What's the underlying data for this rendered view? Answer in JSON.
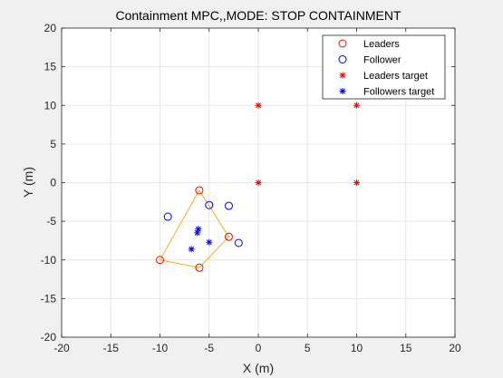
{
  "chart_data": {
    "type": "scatter",
    "title": "Containment MPC,,MODE: STOP CONTAINMENT",
    "xlabel": "X (m)",
    "ylabel": "Y (m)",
    "xlim": [
      -20,
      20
    ],
    "ylim": [
      -20,
      20
    ],
    "xticks": [
      -20,
      -15,
      -10,
      -5,
      0,
      5,
      10,
      15,
      20
    ],
    "yticks": [
      -20,
      -15,
      -10,
      -5,
      0,
      5,
      10,
      15,
      20
    ],
    "grid": true,
    "legend_position": "top-right",
    "series": [
      {
        "name": "Leaders",
        "marker": "circle",
        "color": "#ff0000",
        "points": [
          [
            -6,
            -1
          ],
          [
            -3,
            -7
          ],
          [
            -6,
            -11
          ],
          [
            -10,
            -10
          ]
        ]
      },
      {
        "name": "Follower",
        "marker": "circle",
        "color": "#0000ff",
        "points": [
          [
            -9.2,
            -4.4
          ],
          [
            -5,
            -2.9
          ],
          [
            -3,
            -3
          ],
          [
            -2,
            -7.8
          ]
        ]
      },
      {
        "name": "Leaders target",
        "marker": "asterisk",
        "color": "#ff0000",
        "points": [
          [
            0,
            10
          ],
          [
            10,
            10
          ],
          [
            0,
            0
          ],
          [
            10,
            0
          ]
        ]
      },
      {
        "name": "Followers target",
        "marker": "asterisk",
        "color": "#0000ff",
        "points": [
          [
            -6.1,
            -6
          ],
          [
            -6.2,
            -6.5
          ],
          [
            -5,
            -7.7
          ],
          [
            -6.8,
            -8.6
          ]
        ]
      }
    ],
    "hull": {
      "color": "#edb120",
      "points": [
        [
          -6,
          -1
        ],
        [
          -3,
          -7
        ],
        [
          -6,
          -11
        ],
        [
          -10,
          -10
        ]
      ]
    }
  }
}
